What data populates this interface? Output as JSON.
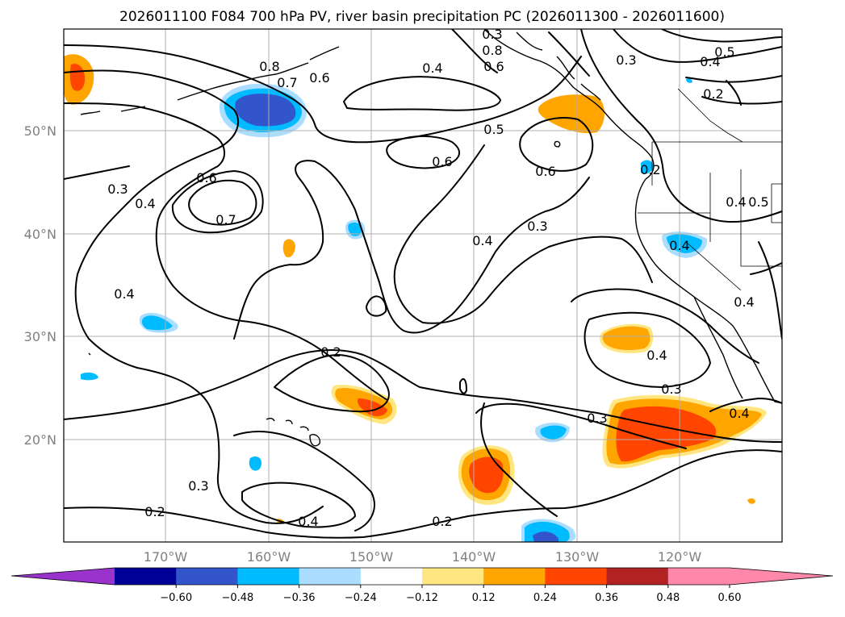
{
  "title": "2026011100 F084 700 hPa PV, river basin precipitation PC (2026011300 - 2026011600)",
  "lat_labels": [
    "50°N",
    "40°N",
    "30°N",
    "20°N"
  ],
  "lon_labels": [
    "170°W",
    "160°W",
    "150°W",
    "140°W",
    "130°W",
    "120°W"
  ],
  "contour_labels": [
    "0.8",
    "0.7",
    "0.6",
    "0.4",
    "0.8",
    "0.6",
    "0.3",
    "0.4",
    "0.5",
    "0.2",
    "0.5",
    "0.6",
    "0.6",
    "0.3",
    "0.4",
    "0.6",
    "0.7",
    "0.4",
    "0.4",
    "0.5",
    "0.4",
    "0.4",
    "0.3",
    "0.4",
    "0.2",
    "0.4",
    "0.3",
    "0.3",
    "0.3",
    "0.4",
    "0.3",
    "0.2",
    "0.4",
    "0.2",
    "0.2"
  ],
  "colorbar": {
    "ticks": [
      "−0.60",
      "−0.48",
      "−0.36",
      "−0.24",
      "−0.12",
      "0.12",
      "0.24",
      "0.36",
      "0.48",
      "0.60"
    ],
    "colors": {
      "under": "#9933cc",
      "bins": [
        "#000099",
        "#3355cc",
        "#00bbff",
        "#aaddff",
        "#ffffff",
        "#ffe680",
        "#ffa500",
        "#ff4500",
        "#b22222",
        "#ff88aa"
      ],
      "over": "#ff88aa"
    }
  },
  "map": {
    "region": "North Pacific and western North America",
    "lon_range": [
      "180°W",
      "110°W"
    ],
    "lat_range": [
      "10°N",
      "60°N"
    ],
    "variable_contours": "700 hPa PV",
    "variable_shading": "river basin precipitation PC"
  }
}
